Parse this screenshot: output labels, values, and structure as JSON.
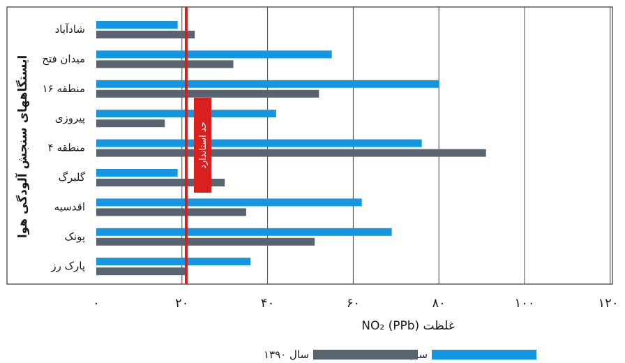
{
  "chart_data": {
    "type": "bar",
    "orientation": "horizontal",
    "categories": [
      "شادآباد",
      "میدان فتح",
      "منطقه ۱۶",
      "پیروزی",
      "منطقه ۴",
      "گلبرگ",
      "اقدسیه",
      "پونک",
      "پارک رز"
    ],
    "series": [
      {
        "name": "سال ۱۳۹۵",
        "color": "#1496e0",
        "values": [
          19,
          55,
          80,
          42,
          76,
          19,
          62,
          69,
          36
        ]
      },
      {
        "name": "سال ۱۳۹۰",
        "color": "#5a6470",
        "values": [
          23,
          32,
          52,
          16,
          91,
          30,
          35,
          51,
          21
        ]
      }
    ],
    "xlim": [
      0,
      120
    ],
    "xticks": [
      0,
      20,
      40,
      60,
      80,
      100,
      120
    ],
    "xtick_labels": [
      "۰",
      "۲۰",
      "۴۰",
      "۶۰",
      "۸۰",
      "۱۰۰",
      "۱۲۰"
    ],
    "xlabel": "غلظت NO₂ (PPb)",
    "ylabel": "ایستگاههای سنجش آلودگی هوا",
    "grid": "vertical",
    "legend_position": "bottom",
    "reference_line": {
      "value": 21,
      "color": "#d8201f",
      "label": "حد استاندارد"
    }
  }
}
